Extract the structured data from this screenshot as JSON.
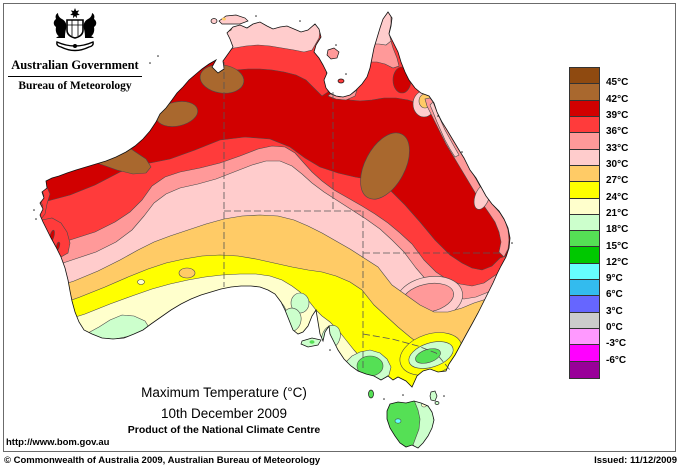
{
  "header": {
    "government": "Australian Government",
    "bureau": "Bureau of Meteorology"
  },
  "title": {
    "line1": "Maximum Temperature (°C)",
    "line2": "10th December 2009",
    "line3": "Product of the National Climate Centre"
  },
  "footer": {
    "url": "http://www.bom.gov.au",
    "copyright": "© Commonwealth of Australia 2009, Australian Bureau of Meteorology",
    "issued": "Issued: 11/12/2009"
  },
  "legend": {
    "labels": [
      "45°C",
      "42°C",
      "39°C",
      "36°C",
      "33°C",
      "30°C",
      "27°C",
      "24°C",
      "21°C",
      "18°C",
      "15°C",
      "12°C",
      "9°C",
      "6°C",
      "3°C",
      "0°C",
      "-3°C",
      "-6°C"
    ],
    "colors": [
      "#8F4A10",
      "#A9682E",
      "#D10000",
      "#FF3B3B",
      "#FF9999",
      "#FFCCCC",
      "#FFCB66",
      "#FFFF00",
      "#FFFFCC",
      "#CCFFCC",
      "#55E055",
      "#00C800",
      "#66FFFF",
      "#33BBEE",
      "#6666FF",
      "#CCCCCC",
      "#FF99FF",
      "#FF00FF",
      "#990099"
    ],
    "swatch_border": "#333333"
  },
  "map": {
    "region": "Australia",
    "product": "maximum-temperature-analysis",
    "coast_color": "#111111",
    "state_border_color": "#555555",
    "contour_color": "#4a4a4a"
  }
}
